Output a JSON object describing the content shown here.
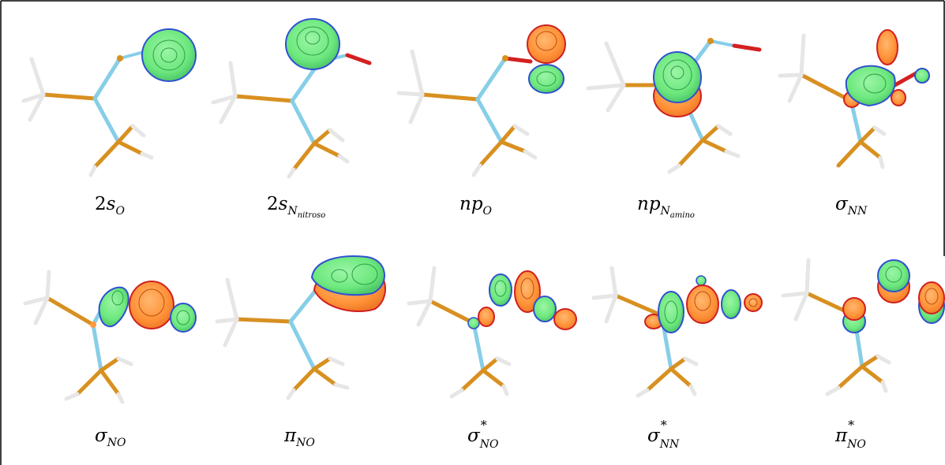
{
  "labels": {
    "row1": [
      {
        "id": "2s-o",
        "lead": "2",
        "main": "s",
        "sub": "O",
        "subsub": ""
      },
      {
        "id": "2s-n-nitroso",
        "lead": "2",
        "main": "s",
        "sub": "N",
        "subsub": "nitroso"
      },
      {
        "id": "np-o",
        "lead": "",
        "main": "np",
        "sub": "O",
        "subsub": ""
      },
      {
        "id": "np-n-amino",
        "lead": "",
        "main": "np",
        "sub": "N",
        "subsub": "amino"
      },
      {
        "id": "sigma-nn",
        "lead": "",
        "main": "σ",
        "sub": "NN",
        "subsub": ""
      }
    ],
    "row2": [
      {
        "id": "sigma-no",
        "main": "σ",
        "sup": "",
        "sub": "NO"
      },
      {
        "id": "pi-no",
        "main": "π",
        "sup": "",
        "sub": "NO"
      },
      {
        "id": "sigma-star-no",
        "main": "σ",
        "sup": "*",
        "sub": "NO"
      },
      {
        "id": "sigma-star-nn",
        "main": "σ",
        "sup": "*",
        "sub": "NN"
      },
      {
        "id": "pi-star-no",
        "main": "π",
        "sup": "*",
        "sub": "NO"
      }
    ]
  },
  "colors": {
    "frame": "#000000",
    "bond_blue": "#87CEE8",
    "bond_orange": "#D89020",
    "hydrogen": "#E6E6E6",
    "oxygen_bond": "#D42020",
    "lobe_green": "#70EE80",
    "lobe_green_edge": "#3050D0",
    "lobe_orange": "#FF9A40",
    "lobe_orange_edge": "#D02020"
  }
}
